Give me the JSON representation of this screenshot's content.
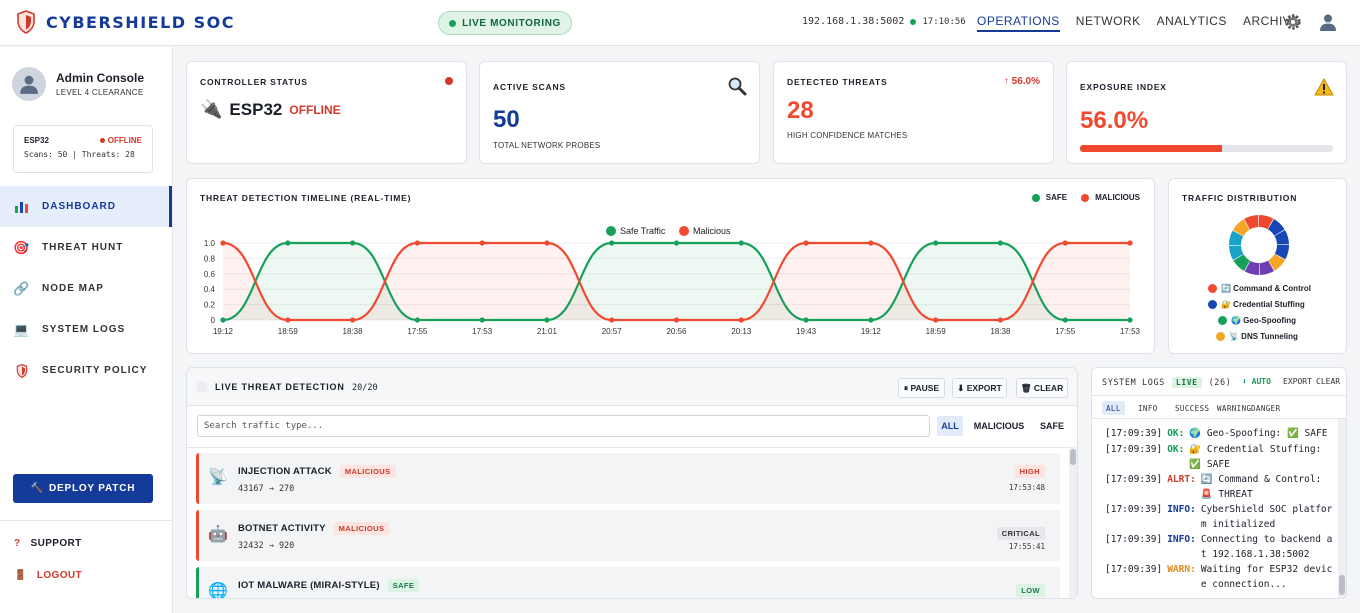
{
  "header": {
    "brand": "CYBERSHIELD SOC",
    "live_label": "LIVE MONITORING",
    "host": "192.168.1.38:5002",
    "clock": "17:10:56",
    "tabs": [
      "OPERATIONS",
      "NETWORK",
      "ANALYTICS",
      "ARCHIVE"
    ],
    "icons": [
      "shield-icon",
      "gear-icon",
      "user-icon"
    ]
  },
  "sidebar": {
    "profile": {
      "name": "Admin Console",
      "role": "LEVEL 4 CLEARANCE"
    },
    "device": {
      "name": "ESP32",
      "status": "OFFLINE",
      "stats": "Scans: 50 | Threats: 28"
    },
    "menu": [
      {
        "label": "DASHBOARD",
        "icon": "chart-icon"
      },
      {
        "label": "THREAT HUNT",
        "icon": "target-icon"
      },
      {
        "label": "NODE MAP",
        "icon": "link-icon"
      },
      {
        "label": "SYSTEM LOGS",
        "icon": "monitor-icon"
      },
      {
        "label": "SECURITY POLICY",
        "icon": "shield-icon"
      }
    ],
    "deploy_label": "DEPLOY PATCH",
    "support_label": "SUPPORT",
    "logout_label": "LOGOUT"
  },
  "kpis": {
    "controller": {
      "label": "CONTROLLER STATUS",
      "device": "ESP32",
      "status": "OFFLINE"
    },
    "scans": {
      "label": "ACTIVE SCANS",
      "value": "50",
      "sub": "TOTAL NETWORK PROBES"
    },
    "threats": {
      "label": "DETECTED THREATS",
      "value": "28",
      "sub": "HIGH CONFIDENCE MATCHES",
      "delta": "↑ 56.0%"
    },
    "exposure": {
      "label": "EXPOSURE INDEX",
      "value": "56.0%",
      "progress": 0.56
    }
  },
  "timeline": {
    "title": "THREAT DETECTION TIMELINE (REAL-TIME)",
    "legend_top": [
      "SAFE",
      "MALICIOUS"
    ],
    "colors": {
      "safe": "#16a05a",
      "malicious": "#f0492f"
    }
  },
  "chart_data": [
    {
      "type": "line",
      "title": "",
      "legend": "top-center",
      "x": [
        "19:12",
        "18:59",
        "18:38",
        "17:55",
        "17:53",
        "21:01",
        "20:57",
        "20:56",
        "20:13",
        "19:43",
        "19:12",
        "18:59",
        "18:38",
        "17:55",
        "17:53"
      ],
      "yticks": [
        "0",
        "0.2",
        "0.4",
        "0.6",
        "0.8",
        "1.0"
      ],
      "ylim": [
        0,
        1
      ],
      "series": [
        {
          "name": "Safe Traffic",
          "values": [
            0,
            1,
            1,
            0,
            0,
            0,
            1,
            1,
            1,
            0,
            0,
            1,
            1,
            0,
            0
          ]
        },
        {
          "name": "Malicious",
          "values": [
            1,
            0,
            0,
            1,
            1,
            1,
            0,
            0,
            0,
            1,
            1,
            0,
            0,
            1,
            1
          ]
        }
      ]
    },
    {
      "type": "pie",
      "title": "TRAFFIC DISTRIBUTION",
      "slice_colors": [
        "#f0492f",
        "#1846b5",
        "#16a05a",
        "#f4a524",
        "#6e3fb0",
        "#1aa3c9"
      ],
      "categories": [
        "🔄 Command & Control",
        "🔐 Credential Stuffing",
        "🌍 Geo-Spoofing",
        "📡 DNS Tunneling"
      ],
      "legend_colors": [
        "#f0492f",
        "#1846b5",
        "#16a05a",
        "#f4a524"
      ]
    }
  ],
  "threat_panel": {
    "title": "LIVE THREAT DETECTION",
    "count": "20/20",
    "buttons": [
      "⏸ PAUSE",
      "⬇ EXPORT",
      "🗑 CLEAR"
    ],
    "search_placeholder": "Search traffic type...",
    "filters": [
      "ALL",
      "MALICIOUS",
      "SAFE"
    ],
    "rows": [
      {
        "name": "INJECTION ATTACK",
        "tag": "MALICIOUS",
        "ports": "43167 → 270",
        "severity": "HIGH",
        "time": "17:53:48",
        "icon": "satellite-icon",
        "glyph": "📡"
      },
      {
        "name": "BOTNET ACTIVITY",
        "tag": "MALICIOUS",
        "ports": "32432 → 920",
        "severity": "CRITICAL",
        "time": "17:55:41",
        "icon": "robot-icon",
        "glyph": "🤖"
      },
      {
        "name": "IOT MALWARE (MIRAI-STYLE)",
        "tag": "SAFE",
        "ports": "",
        "severity": "LOW",
        "time": "",
        "icon": "globe-icon",
        "glyph": "🌐"
      }
    ]
  },
  "logs": {
    "title": "SYSTEM LOGS",
    "live": "LIVE",
    "count": "(26)",
    "actions": [
      "⬇ AUTO",
      "EXPORT",
      "CLEAR"
    ],
    "filters": [
      "ALL",
      "INFO",
      "SUCCESS",
      "WARNING",
      "DANGER"
    ],
    "lines": [
      {
        "ts": "[17:09:39]",
        "lvl": "OK:",
        "msg": "🌍 Geo-Spoofing: ✅ SAFE"
      },
      {
        "ts": "[17:09:39]",
        "lvl": "OK:",
        "msg": "🔐 Credential Stuffing: ✅ SAFE"
      },
      {
        "ts": "[17:09:39]",
        "lvl": "ALRT:",
        "msg": "🔄 Command & Control: 🚨 THREAT"
      },
      {
        "ts": "[17:09:39]",
        "lvl": "INFO:",
        "msg": "CyberShield SOC platform initialized"
      },
      {
        "ts": "[17:09:39]",
        "lvl": "INFO:",
        "msg": "Connecting to backend at 192.168.1.38:5002"
      },
      {
        "ts": "[17:09:39]",
        "lvl": "WARN:",
        "msg": "Waiting for ESP32 device connection..."
      }
    ]
  }
}
